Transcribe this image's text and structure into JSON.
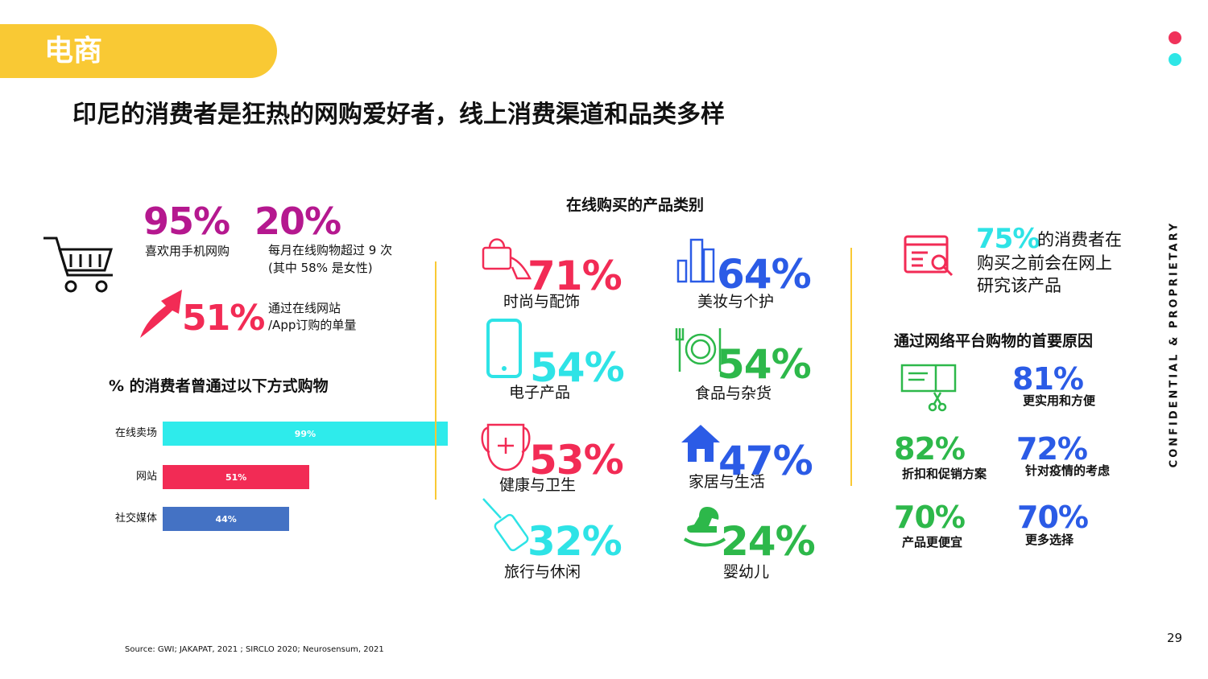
{
  "header": {
    "section": "电商",
    "title": "印尼的消费者是狂热的网购爱好者，线上消费渠道和品类多样"
  },
  "left": {
    "stats": [
      {
        "value": "95%",
        "lines": [
          "喜欢用手机网购"
        ]
      },
      {
        "value": "20%",
        "lines": [
          "每月在线购物超过 9 次",
          "(其中 58% 是女性)"
        ]
      },
      {
        "value": "51%",
        "lines": [
          "通过在线网站",
          "/App订购的单量"
        ]
      }
    ],
    "bar_chart": {
      "title": "% 的消费者曾通过以下方式购物",
      "categories": [
        "在线卖场",
        "网站",
        "社交媒体"
      ],
      "values": [
        99,
        51,
        44
      ],
      "value_labels": [
        "99%",
        "51%",
        "44%"
      ],
      "colors": [
        "#2EEBEB",
        "#F22B55",
        "#4472C4"
      ]
    }
  },
  "middle": {
    "title": "在线购买的产品类别",
    "items": [
      {
        "value": "71%",
        "label": "时尚与配饰"
      },
      {
        "value": "54%",
        "label": "电子产品"
      },
      {
        "value": "53%",
        "label": "健康与卫生"
      },
      {
        "value": "32%",
        "label": "旅行与休闲"
      },
      {
        "value": "64%",
        "label": "美妆与个护"
      },
      {
        "value": "54%",
        "label": "食品与杂货"
      },
      {
        "value": "47%",
        "label": "家居与生活"
      },
      {
        "value": "24%",
        "label": "婴幼儿"
      }
    ]
  },
  "right": {
    "research": {
      "value": "75%",
      "lines": [
        "的消费者在",
        "购买之前会在网上",
        "研究该产品"
      ]
    },
    "reasons_title": "通过网络平台购物的首要原因",
    "reasons": [
      {
        "value": "81%",
        "label": "更实用和方便"
      },
      {
        "value": "82%",
        "label": "折扣和促销方案"
      },
      {
        "value": "72%",
        "label": "针对疫情的考虑"
      },
      {
        "value": "70%",
        "label": "产品更便宜"
      },
      {
        "value": "70%",
        "label": "更多选择"
      }
    ]
  },
  "footer": {
    "source": "Source: GWI; JAKAPAT, 2021 ; SIRCLO 2020; Neurosensum, 2021",
    "page": "29",
    "confidential": "CONFIDENTIAL & PROPRIETARY"
  }
}
